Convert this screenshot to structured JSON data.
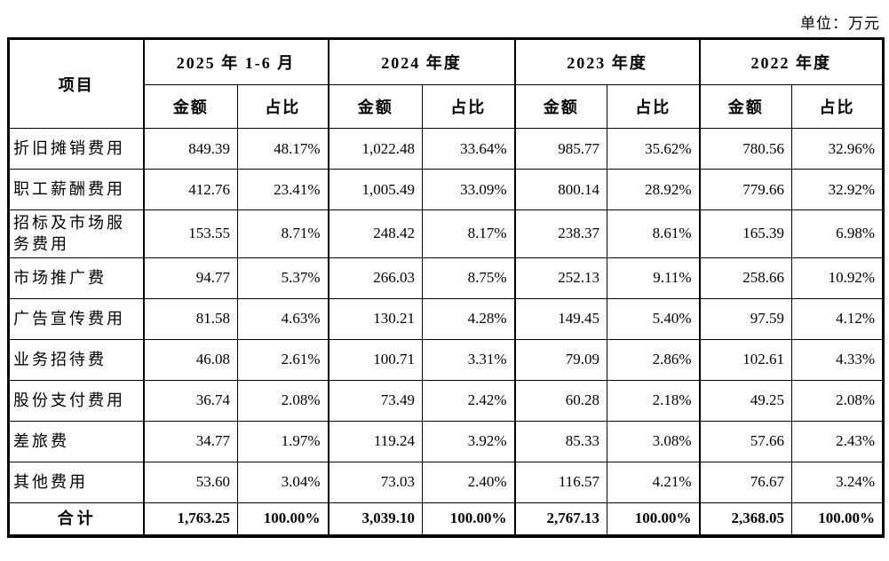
{
  "unit_label": "单位：万元",
  "table": {
    "item_header": "项目",
    "periods": [
      "2025 年 1-6 月",
      "2024 年度",
      "2023 年度",
      "2022 年度"
    ],
    "sub_headers": [
      "金额",
      "占比"
    ],
    "rows": [
      {
        "label": "折旧摊销费用",
        "values": [
          "849.39",
          "48.17%",
          "1,022.48",
          "33.64%",
          "985.77",
          "35.62%",
          "780.56",
          "32.96%"
        ]
      },
      {
        "label": "职工薪酬费用",
        "values": [
          "412.76",
          "23.41%",
          "1,005.49",
          "33.09%",
          "800.14",
          "28.92%",
          "779.66",
          "32.92%"
        ]
      },
      {
        "label": "招标及市场服务费用",
        "values": [
          "153.55",
          "8.71%",
          "248.42",
          "8.17%",
          "238.37",
          "8.61%",
          "165.39",
          "6.98%"
        ]
      },
      {
        "label": "市场推广费",
        "values": [
          "94.77",
          "5.37%",
          "266.03",
          "8.75%",
          "252.13",
          "9.11%",
          "258.66",
          "10.92%"
        ]
      },
      {
        "label": "广告宣传费用",
        "values": [
          "81.58",
          "4.63%",
          "130.21",
          "4.28%",
          "149.45",
          "5.40%",
          "97.59",
          "4.12%"
        ]
      },
      {
        "label": "业务招待费",
        "values": [
          "46.08",
          "2.61%",
          "100.71",
          "3.31%",
          "79.09",
          "2.86%",
          "102.61",
          "4.33%"
        ]
      },
      {
        "label": "股份支付费用",
        "values": [
          "36.74",
          "2.08%",
          "73.49",
          "2.42%",
          "60.28",
          "2.18%",
          "49.25",
          "2.08%"
        ]
      },
      {
        "label": "差旅费",
        "values": [
          "34.77",
          "1.97%",
          "119.24",
          "3.92%",
          "85.33",
          "3.08%",
          "57.66",
          "2.43%"
        ]
      },
      {
        "label": "其他费用",
        "values": [
          "53.60",
          "3.04%",
          "73.03",
          "2.40%",
          "116.57",
          "4.21%",
          "76.67",
          "3.24%"
        ]
      }
    ],
    "total_row": {
      "label": "合计",
      "values": [
        "1,763.25",
        "100.00%",
        "3,039.10",
        "100.00%",
        "2,767.13",
        "100.00%",
        "2,368.05",
        "100.00%"
      ]
    }
  }
}
